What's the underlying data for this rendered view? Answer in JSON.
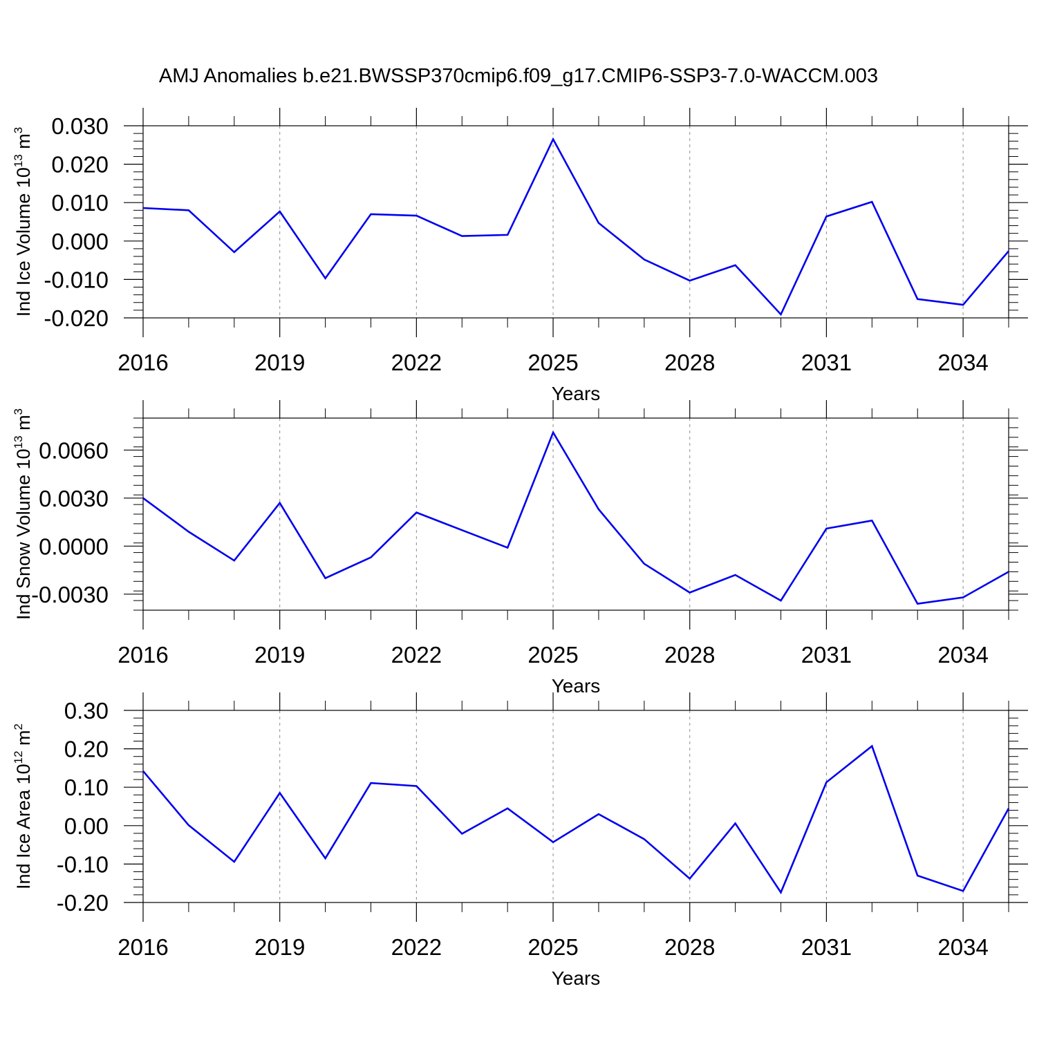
{
  "title": "AMJ Anomalies b.e21.BWSSP370cmip6.f09_g17.CMIP6-SSP3-7.0-WACCM.003",
  "line_color": "#0000ee",
  "chart_data": [
    {
      "type": "line",
      "ylabel": "Ind Ice Volume 10",
      "ylabel_exp": "13",
      "ylabel_unit": " m",
      "ylabel_unit_exp": "3",
      "xlabel": "Years",
      "xlim": [
        2016,
        2035
      ],
      "ylim": [
        -0.02,
        0.03
      ],
      "yticks": [
        -0.02,
        -0.01,
        0.0,
        0.01,
        0.02,
        0.03
      ],
      "ytick_labels": [
        "-0.020",
        "-0.010",
        "0.000",
        "0.010",
        "0.020",
        "0.030"
      ],
      "xticks": [
        2016,
        2019,
        2022,
        2025,
        2028,
        2031,
        2034
      ],
      "xtick_labels": [
        "2016",
        "2019",
        "2022",
        "2025",
        "2028",
        "2031",
        "2034"
      ],
      "series": [
        {
          "x": [
            2016,
            2017,
            2018,
            2019,
            2020,
            2021,
            2022,
            2023,
            2024,
            2025,
            2026,
            2027,
            2028,
            2029,
            2030,
            2031,
            2032,
            2033,
            2034,
            2035
          ],
          "values": [
            0.0086,
            0.008,
            -0.0029,
            0.0077,
            -0.0097,
            0.007,
            0.0066,
            0.0013,
            0.0016,
            0.0265,
            0.0047,
            -0.0048,
            -0.0103,
            -0.0063,
            -0.0191,
            0.0064,
            0.0102,
            -0.0151,
            -0.0166,
            -0.0026
          ]
        }
      ]
    },
    {
      "type": "line",
      "ylabel": "Ind Snow Volume 10",
      "ylabel_exp": "13",
      "ylabel_unit": " m",
      "ylabel_unit_exp": "3",
      "xlabel": "Years",
      "xlim": [
        2016,
        2035
      ],
      "ylim": [
        -0.004,
        0.008
      ],
      "yticks": [
        -0.003,
        0.0,
        0.003,
        0.006
      ],
      "ytick_labels": [
        "-0.0030",
        "0.0000",
        "0.0030",
        "0.0060"
      ],
      "xticks": [
        2016,
        2019,
        2022,
        2025,
        2028,
        2031,
        2034
      ],
      "xtick_labels": [
        "2016",
        "2019",
        "2022",
        "2025",
        "2028",
        "2031",
        "2034"
      ],
      "series": [
        {
          "x": [
            2016,
            2017,
            2018,
            2019,
            2020,
            2021,
            2022,
            2023,
            2024,
            2025,
            2026,
            2027,
            2028,
            2029,
            2030,
            2031,
            2032,
            2033,
            2034,
            2035
          ],
          "values": [
            0.003,
            0.0009,
            -0.0009,
            0.0027,
            -0.002,
            -0.0007,
            0.0021,
            0.001,
            -0.0001,
            0.0071,
            0.0023,
            -0.0011,
            -0.0029,
            -0.0018,
            -0.0034,
            0.0011,
            0.0016,
            -0.0036,
            -0.0032,
            -0.0016
          ]
        }
      ]
    },
    {
      "type": "line",
      "ylabel": "Ind Ice Area 10",
      "ylabel_exp": "12",
      "ylabel_unit": " m",
      "ylabel_unit_exp": "2",
      "xlabel": "Years",
      "xlim": [
        2016,
        2035
      ],
      "ylim": [
        -0.2,
        0.3
      ],
      "yticks": [
        -0.2,
        -0.1,
        0.0,
        0.1,
        0.2,
        0.3
      ],
      "ytick_labels": [
        "-0.20",
        "-0.10",
        "0.00",
        "0.10",
        "0.20",
        "0.30"
      ],
      "xticks": [
        2016,
        2019,
        2022,
        2025,
        2028,
        2031,
        2034
      ],
      "xtick_labels": [
        "2016",
        "2019",
        "2022",
        "2025",
        "2028",
        "2031",
        "2034"
      ],
      "series": [
        {
          "x": [
            2016,
            2017,
            2018,
            2019,
            2020,
            2021,
            2022,
            2023,
            2024,
            2025,
            2026,
            2027,
            2028,
            2029,
            2030,
            2031,
            2032,
            2033,
            2034,
            2035
          ],
          "values": [
            0.142,
            0.001,
            -0.094,
            0.085,
            -0.085,
            0.111,
            0.103,
            -0.021,
            0.045,
            -0.043,
            0.03,
            -0.035,
            -0.138,
            0.006,
            -0.174,
            0.113,
            0.207,
            -0.13,
            -0.17,
            0.045
          ]
        }
      ]
    }
  ]
}
